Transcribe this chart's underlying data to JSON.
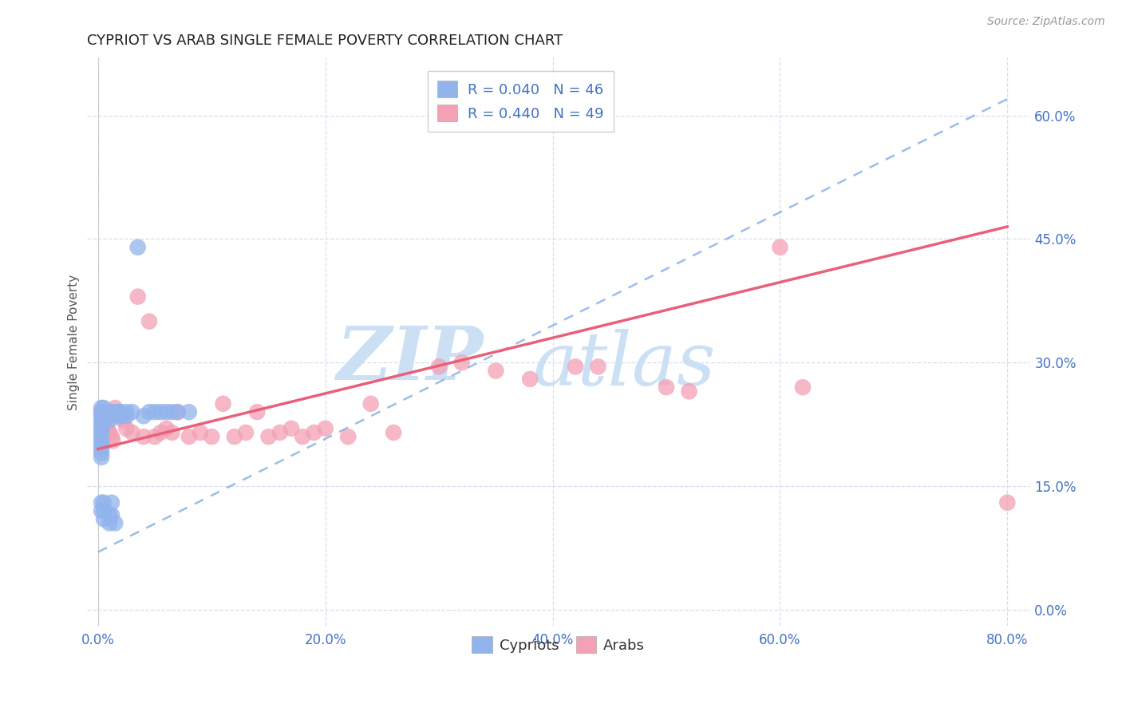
{
  "title": "CYPRIOT VS ARAB SINGLE FEMALE POVERTY CORRELATION CHART",
  "source": "Source: ZipAtlas.com",
  "ylabel": "Single Female Poverty",
  "xlabel_ticks": [
    "0.0%",
    "20.0%",
    "40.0%",
    "60.0%",
    "80.0%"
  ],
  "xlabel_tick_vals": [
    0.0,
    0.2,
    0.4,
    0.6,
    0.8
  ],
  "ylabel_ticks": [
    "0.0%",
    "15.0%",
    "30.0%",
    "45.0%",
    "60.0%"
  ],
  "ylabel_tick_vals": [
    0.0,
    0.15,
    0.3,
    0.45,
    0.6
  ],
  "xlim": [
    -0.01,
    0.82
  ],
  "ylim": [
    -0.02,
    0.67
  ],
  "cypriot_R": 0.04,
  "cypriot_N": 46,
  "arab_R": 0.44,
  "arab_N": 49,
  "cypriot_color": "#92b4ec",
  "arab_color": "#f4a0b5",
  "cypriot_line_color": "#7aa8e0",
  "arab_line_color": "#e8607a",
  "background_color": "#ffffff",
  "grid_color": "#d8dff0",
  "watermark_text1": "ZIP",
  "watermark_text2": "atlas",
  "watermark_color": "#cce0f5",
  "cypriot_x": [
    0.003,
    0.003,
    0.003,
    0.003,
    0.003,
    0.003,
    0.003,
    0.003,
    0.003,
    0.003,
    0.003,
    0.003,
    0.003,
    0.003,
    0.003,
    0.005,
    0.005,
    0.005,
    0.005,
    0.005,
    0.01,
    0.01,
    0.01,
    0.01,
    0.01,
    0.012,
    0.012,
    0.012,
    0.015,
    0.015,
    0.018,
    0.018,
    0.02,
    0.02,
    0.025,
    0.025,
    0.03,
    0.035,
    0.04,
    0.045,
    0.05,
    0.055,
    0.06,
    0.065,
    0.07,
    0.08
  ],
  "cypriot_y": [
    0.245,
    0.24,
    0.235,
    0.23,
    0.225,
    0.22,
    0.215,
    0.21,
    0.205,
    0.2,
    0.195,
    0.19,
    0.185,
    0.13,
    0.12,
    0.245,
    0.235,
    0.13,
    0.12,
    0.11,
    0.24,
    0.235,
    0.23,
    0.115,
    0.105,
    0.24,
    0.13,
    0.115,
    0.24,
    0.105,
    0.24,
    0.235,
    0.24,
    0.235,
    0.24,
    0.235,
    0.24,
    0.44,
    0.235,
    0.24,
    0.24,
    0.24,
    0.24,
    0.24,
    0.24,
    0.24
  ],
  "arab_x": [
    0.003,
    0.004,
    0.005,
    0.007,
    0.008,
    0.01,
    0.012,
    0.013,
    0.015,
    0.018,
    0.02,
    0.022,
    0.025,
    0.03,
    0.035,
    0.04,
    0.045,
    0.05,
    0.055,
    0.06,
    0.065,
    0.07,
    0.08,
    0.09,
    0.1,
    0.11,
    0.12,
    0.13,
    0.14,
    0.15,
    0.16,
    0.17,
    0.18,
    0.19,
    0.2,
    0.22,
    0.24,
    0.26,
    0.3,
    0.32,
    0.35,
    0.38,
    0.42,
    0.44,
    0.5,
    0.52,
    0.6,
    0.62,
    0.8
  ],
  "arab_y": [
    0.24,
    0.235,
    0.23,
    0.225,
    0.22,
    0.215,
    0.21,
    0.205,
    0.245,
    0.24,
    0.235,
    0.23,
    0.22,
    0.215,
    0.38,
    0.21,
    0.35,
    0.21,
    0.215,
    0.22,
    0.215,
    0.24,
    0.21,
    0.215,
    0.21,
    0.25,
    0.21,
    0.215,
    0.24,
    0.21,
    0.215,
    0.22,
    0.21,
    0.215,
    0.22,
    0.21,
    0.25,
    0.215,
    0.295,
    0.3,
    0.29,
    0.28,
    0.295,
    0.295,
    0.27,
    0.265,
    0.44,
    0.27,
    0.13
  ]
}
